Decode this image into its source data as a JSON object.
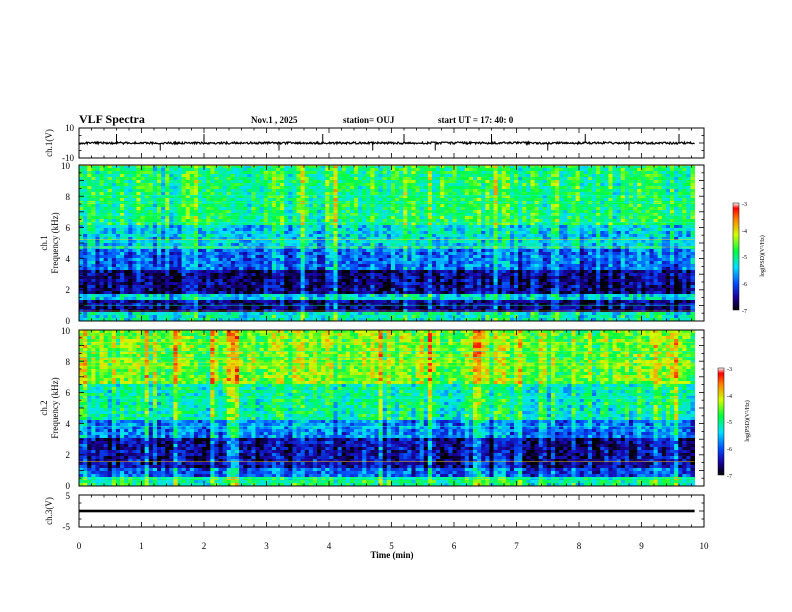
{
  "header": {
    "title": "VLF Spectra",
    "date": "Nov.1 , 2025",
    "station": "station= OUJ",
    "start": "start UT = 17: 40: 0"
  },
  "chart_data": [
    {
      "type": "line",
      "panel": "ch1-waveform",
      "ylabel": "ch.1(V)",
      "ylim": [
        -10,
        10
      ],
      "yticks": [
        "10",
        "-10"
      ],
      "xlim": [
        0,
        10
      ],
      "series": [
        {
          "values_description_free": true,
          "level": 0.0,
          "noise_amplitude": 0.6,
          "spike_times": [
            0.6,
            1.3,
            2.0,
            3.2,
            3.9,
            4.7,
            5.2,
            5.7,
            6.6,
            7.5,
            8.1,
            8.8,
            9.6
          ]
        }
      ]
    },
    {
      "type": "heatmap",
      "panel": "ch1-spectrogram",
      "ylabel_top": "ch.1",
      "ylabel": "Frequency (kHz)",
      "ylim": [
        0,
        10
      ],
      "yticks": [
        "0",
        "2",
        "4",
        "6",
        "8",
        "10"
      ],
      "xlim": [
        0,
        10
      ],
      "data_end_min": 9.85,
      "colorbar": {
        "label": "log(PSD)(V²/Hz)",
        "range": [
          -7,
          -3
        ],
        "ticks": [
          "-3",
          "-4",
          "-5",
          "-6",
          "-7"
        ]
      },
      "bands": [
        {
          "f": [
            0,
            0.5
          ],
          "level": -5.2
        },
        {
          "f": [
            0.5,
            1.4
          ],
          "level": -6.6
        },
        {
          "f": [
            1.4,
            1.8
          ],
          "level": -5.4
        },
        {
          "f": [
            1.8,
            3.2
          ],
          "level": -6.6
        },
        {
          "f": [
            3.2,
            4.6
          ],
          "level": -5.9
        },
        {
          "f": [
            4.6,
            6.2
          ],
          "level": -5.4
        },
        {
          "f": [
            6.2,
            10
          ],
          "level": -4.9
        }
      ]
    },
    {
      "type": "heatmap",
      "panel": "ch2-spectrogram",
      "ylabel_top": "ch.2",
      "ylabel": "Frequency (kHz)",
      "ylim": [
        0,
        10
      ],
      "yticks": [
        "0",
        "2",
        "4",
        "6",
        "8",
        "10"
      ],
      "xlim": [
        0,
        10
      ],
      "data_end_min": 9.85,
      "colorbar": {
        "label": "log(PSD)(V²/Hz)",
        "range": [
          -7,
          -3
        ],
        "ticks": [
          "-3",
          "-4",
          "-5",
          "-6",
          "-7"
        ]
      },
      "bands": [
        {
          "f": [
            0,
            0.5
          ],
          "level": -5.0
        },
        {
          "f": [
            0.5,
            1.2
          ],
          "level": -6.0
        },
        {
          "f": [
            1.2,
            3.0
          ],
          "level": -6.5
        },
        {
          "f": [
            3.0,
            4.2
          ],
          "level": -5.8
        },
        {
          "f": [
            4.2,
            6.6
          ],
          "level": -5.1
        },
        {
          "f": [
            6.6,
            10
          ],
          "level": -4.5
        }
      ]
    },
    {
      "type": "line",
      "panel": "ch3-waveform",
      "ylabel": "ch.3(V)",
      "ylim": [
        -5,
        5
      ],
      "yticks": [
        "5",
        "-5"
      ],
      "xlim": [
        0,
        10
      ],
      "xlabel": "Time (min)",
      "xticks": [
        "0",
        "1",
        "2",
        "3",
        "4",
        "5",
        "6",
        "7",
        "8",
        "9",
        "10"
      ],
      "series": [
        {
          "level": 0.0,
          "thickness_volts": 0.8
        }
      ]
    }
  ]
}
